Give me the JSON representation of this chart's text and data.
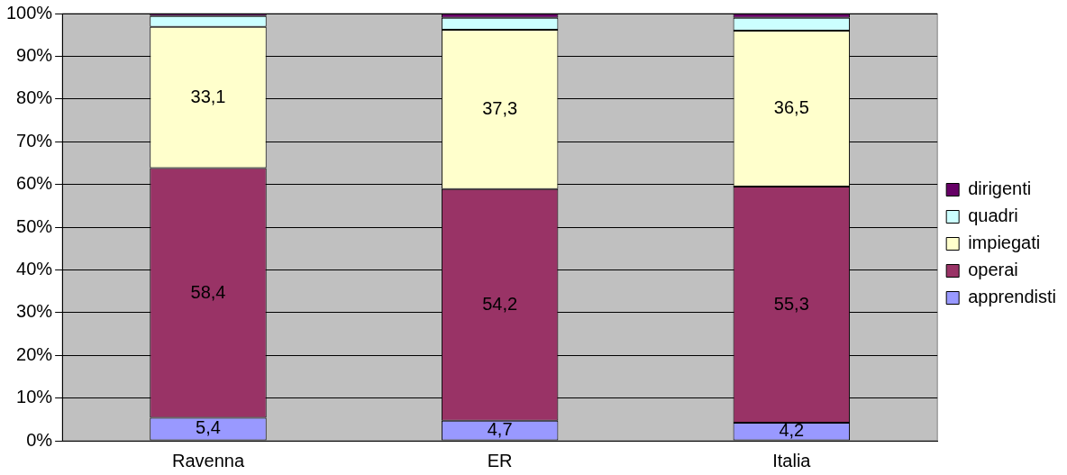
{
  "chart_data": {
    "type": "bar",
    "stacked": true,
    "categories": [
      "Ravenna",
      "ER",
      "Italia"
    ],
    "series": [
      {
        "name": "apprendisti",
        "color": "#9999ff",
        "values": [
          5.4,
          4.7,
          4.2
        ],
        "value_labels": [
          "5,4",
          "4,7",
          "4,2"
        ]
      },
      {
        "name": "operai",
        "color": "#993366",
        "values": [
          58.4,
          54.2,
          55.3
        ],
        "value_labels": [
          "58,4",
          "54,2",
          "55,3"
        ]
      },
      {
        "name": "impiegati",
        "color": "#ffffcc",
        "values": [
          33.1,
          37.3,
          36.5
        ],
        "value_labels": [
          "33,1",
          "37,3",
          "36,5"
        ]
      },
      {
        "name": "quadri",
        "color": "#ccffff",
        "values": [
          2.5,
          2.8,
          3.0
        ]
      },
      {
        "name": "dirigenti",
        "color": "#660066",
        "values": [
          0.6,
          1.0,
          1.0
        ]
      }
    ],
    "ylim": [
      0,
      100
    ],
    "yticks": [
      {
        "value": 0,
        "label": "0%"
      },
      {
        "value": 10,
        "label": "10%"
      },
      {
        "value": 20,
        "label": "20%"
      },
      {
        "value": 30,
        "label": "30%"
      },
      {
        "value": 40,
        "label": "40%"
      },
      {
        "value": 50,
        "label": "50%"
      },
      {
        "value": 60,
        "label": "60%"
      },
      {
        "value": 70,
        "label": "70%"
      },
      {
        "value": 80,
        "label": "80%"
      },
      {
        "value": 90,
        "label": "90%"
      },
      {
        "value": 100,
        "label": "100%"
      }
    ],
    "grid": "y",
    "legend": "right"
  }
}
